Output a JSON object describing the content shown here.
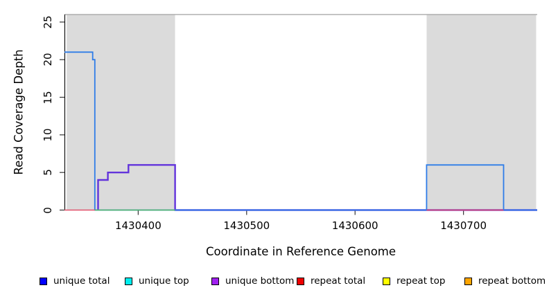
{
  "chart_data": {
    "type": "line",
    "title": "",
    "xlabel": "Coordinate in Reference Genome",
    "ylabel": "Read Coverage Depth",
    "xlim": [
      1430332,
      1430768
    ],
    "ylim": [
      0,
      26
    ],
    "xticks": [
      1430400,
      1430500,
      1430600,
      1430700
    ],
    "yticks": [
      0,
      5,
      10,
      15,
      20,
      25
    ],
    "grid": false,
    "legend_position": "bottom",
    "shaded_regions": [
      {
        "name": "repeat-region-left",
        "from": 1430334,
        "to": 1430434,
        "color": "#DBDBDB"
      },
      {
        "name": "repeat-region-right",
        "from": 1430666,
        "to": 1430767,
        "color": "#DBDBDB"
      }
    ],
    "series": [
      {
        "name": "unique bottom",
        "color": "#6233DB",
        "width": 2.4,
        "segments": [
          [
            [
              1430363,
              0
            ],
            [
              1430363,
              4
            ],
            [
              1430372,
              4
            ],
            [
              1430372,
              5
            ],
            [
              1430391,
              5
            ],
            [
              1430391,
              6
            ],
            [
              1430434,
              6
            ],
            [
              1430434,
              0
            ],
            [
              1430768,
              0
            ]
          ]
        ]
      },
      {
        "name": "unique total",
        "color": "#2E7CE8",
        "width": 1.8,
        "segments": [
          [
            [
              1430332,
              21
            ],
            [
              1430358,
              21
            ],
            [
              1430358,
              20
            ],
            [
              1430360,
              20
            ],
            [
              1430360,
              0
            ],
            [
              1430666,
              0
            ],
            [
              1430666,
              6
            ],
            [
              1430737,
              6
            ],
            [
              1430737,
              0
            ],
            [
              1430768,
              0
            ]
          ]
        ]
      },
      {
        "name": "unique top + repeat top overlap",
        "color": "#55B865",
        "width": 1.6,
        "segments": [
          [
            [
              1430360,
              0
            ],
            [
              1430434,
              0
            ]
          ]
        ]
      },
      {
        "name": "repeat total",
        "color": "#E0506A",
        "width": 1.6,
        "segments": [
          [
            [
              1430332,
              0
            ],
            [
              1430360,
              0
            ]
          ],
          [
            [
              1430666,
              0
            ],
            [
              1430737,
              0
            ]
          ]
        ]
      }
    ]
  },
  "legend": {
    "items": [
      {
        "label": "unique total",
        "color": "#0000FF"
      },
      {
        "label": "unique top",
        "color": "#00EEEE"
      },
      {
        "label": "unique bottom",
        "color": "#A020F0"
      },
      {
        "label": "repeat total",
        "color": "#EE0000"
      },
      {
        "label": "repeat top",
        "color": "#FFFF00"
      },
      {
        "label": "repeat bottom",
        "color": "#FFA500"
      }
    ]
  }
}
